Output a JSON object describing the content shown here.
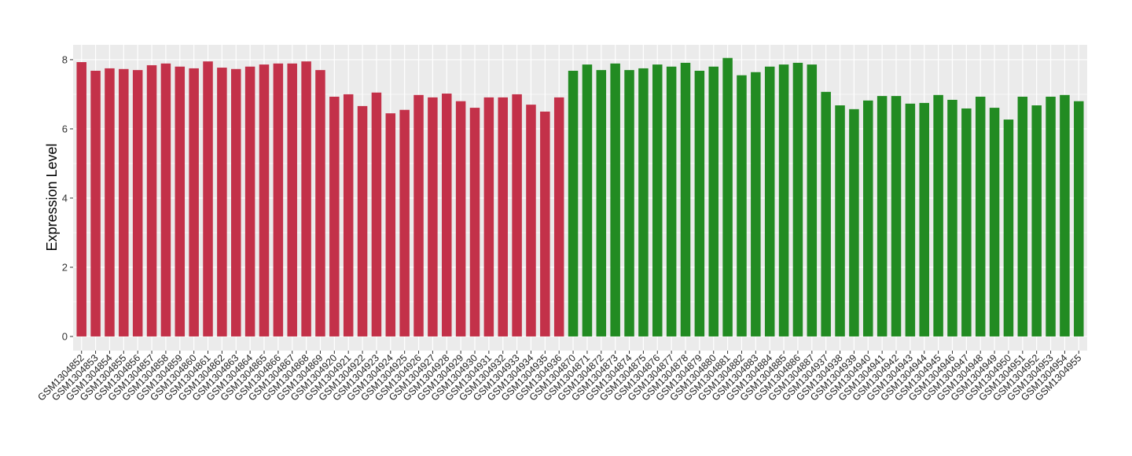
{
  "chart_data": {
    "type": "bar",
    "title": "",
    "xlabel": "",
    "ylabel": "Expression Level",
    "ylim": [
      -0.41,
      8.43
    ],
    "yticks": [
      0,
      2,
      4,
      6,
      8
    ],
    "grid": true,
    "legend": "none",
    "colors": {
      "group1": "#C33149",
      "group2": "#228B22",
      "panel": "#EBEBEB",
      "grid": "#FFFFFF"
    },
    "categories": [
      "GSM1304852",
      "GSM1304853",
      "GSM1304854",
      "GSM1304855",
      "GSM1304856",
      "GSM1304857",
      "GSM1304858",
      "GSM1304859",
      "GSM1304860",
      "GSM1304861",
      "GSM1304862",
      "GSM1304863",
      "GSM1304864",
      "GSM1304865",
      "GSM1304866",
      "GSM1304867",
      "GSM1304868",
      "GSM1304869",
      "GSM1304920",
      "GSM1304921",
      "GSM1304922",
      "GSM1304923",
      "GSM1304924",
      "GSM1304925",
      "GSM1304926",
      "GSM1304927",
      "GSM1304928",
      "GSM1304929",
      "GSM1304930",
      "GSM1304931",
      "GSM1304932",
      "GSM1304933",
      "GSM1304934",
      "GSM1304935",
      "GSM1304936",
      "GSM1304870",
      "GSM1304871",
      "GSM1304872",
      "GSM1304873",
      "GSM1304874",
      "GSM1304875",
      "GSM1304876",
      "GSM1304877",
      "GSM1304878",
      "GSM1304879",
      "GSM1304880",
      "GSM1304881",
      "GSM1304882",
      "GSM1304883",
      "GSM1304884",
      "GSM1304885",
      "GSM1304886",
      "GSM1304887",
      "GSM1304937",
      "GSM1304938",
      "GSM1304939",
      "GSM1304940",
      "GSM1304941",
      "GSM1304942",
      "GSM1304943",
      "GSM1304944",
      "GSM1304945",
      "GSM1304946",
      "GSM1304947",
      "GSM1304948",
      "GSM1304949",
      "GSM1304950",
      "GSM1304951",
      "GSM1304952",
      "GSM1304953",
      "GSM1304954",
      "GSM1304955"
    ],
    "values": [
      7.93,
      7.68,
      7.75,
      7.73,
      7.7,
      7.84,
      7.89,
      7.8,
      7.75,
      7.95,
      7.77,
      7.73,
      7.8,
      7.86,
      7.89,
      7.89,
      7.95,
      7.7,
      6.93,
      7.0,
      6.66,
      7.05,
      6.45,
      6.55,
      6.98,
      6.91,
      7.02,
      6.8,
      6.61,
      6.91,
      6.91,
      7.0,
      6.7,
      6.5,
      6.91,
      7.68,
      7.86,
      7.7,
      7.89,
      7.7,
      7.75,
      7.86,
      7.8,
      7.91,
      7.68,
      7.8,
      8.05,
      7.55,
      7.64,
      7.8,
      7.86,
      7.91,
      7.86,
      7.07,
      6.68,
      6.57,
      6.82,
      6.95,
      6.95,
      6.73,
      6.75,
      6.98,
      6.84,
      6.59,
      6.93,
      6.61,
      6.27,
      6.93,
      6.68,
      6.93,
      6.98,
      6.8
    ],
    "groups": [
      "group1",
      "group1",
      "group1",
      "group1",
      "group1",
      "group1",
      "group1",
      "group1",
      "group1",
      "group1",
      "group1",
      "group1",
      "group1",
      "group1",
      "group1",
      "group1",
      "group1",
      "group1",
      "group1",
      "group1",
      "group1",
      "group1",
      "group1",
      "group1",
      "group1",
      "group1",
      "group1",
      "group1",
      "group1",
      "group1",
      "group1",
      "group1",
      "group1",
      "group1",
      "group1",
      "group2",
      "group2",
      "group2",
      "group2",
      "group2",
      "group2",
      "group2",
      "group2",
      "group2",
      "group2",
      "group2",
      "group2",
      "group2",
      "group2",
      "group2",
      "group2",
      "group2",
      "group2",
      "group2",
      "group2",
      "group2",
      "group2",
      "group2",
      "group2",
      "group2",
      "group2",
      "group2",
      "group2",
      "group2",
      "group2",
      "group2",
      "group2",
      "group2",
      "group2",
      "group2",
      "group2",
      "group2"
    ]
  }
}
